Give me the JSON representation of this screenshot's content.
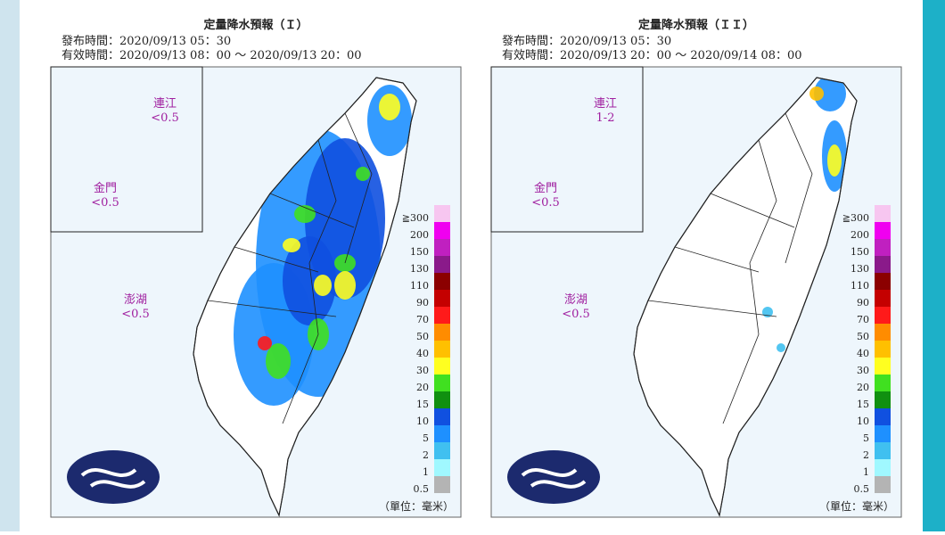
{
  "panels": [
    {
      "title": "定量降水預報（Ｉ）",
      "issued": "發布時間：2020/09/13 05：30",
      "valid": "有效時間：2020/09/13 08：00 ～ 2020/09/13 20：00",
      "islands": [
        {
          "name": "連江",
          "amount": "<0.5"
        },
        {
          "name": "金門",
          "amount": "<0.5"
        },
        {
          "name": "澎湖",
          "amount": "<0.5"
        }
      ],
      "unit": "（單位：毫米）"
    },
    {
      "title": "定量降水預報（ＩＩ）",
      "issued": "發布時間：2020/09/13 05：30",
      "valid": "有效時間：2020/09/13 20：00 ～ 2020/09/14 08：00",
      "islands": [
        {
          "name": "連江",
          "amount": "1-2"
        },
        {
          "name": "金門",
          "amount": "<0.5"
        },
        {
          "name": "澎湖",
          "amount": "<0.5"
        }
      ],
      "unit": "（單位：毫米）"
    }
  ],
  "legend": [
    {
      "label": "≧300",
      "color": "#f7c6f0"
    },
    {
      "label": "200",
      "color": "#f000f0"
    },
    {
      "label": "150",
      "color": "#c020c0"
    },
    {
      "label": "130",
      "color": "#8a1a8a"
    },
    {
      "label": "110",
      "color": "#8b0000"
    },
    {
      "label": "90",
      "color": "#c40000"
    },
    {
      "label": "70",
      "color": "#ff1a1a"
    },
    {
      "label": "50",
      "color": "#ff8c00"
    },
    {
      "label": "40",
      "color": "#ffc000"
    },
    {
      "label": "30",
      "color": "#ffff20"
    },
    {
      "label": "20",
      "color": "#40e020"
    },
    {
      "label": "15",
      "color": "#109010"
    },
    {
      "label": "10",
      "color": "#1050e0"
    },
    {
      "label": "5",
      "color": "#1e90ff"
    },
    {
      "label": "2",
      "color": "#40c0f0"
    },
    {
      "label": "1",
      "color": "#a0f8ff"
    },
    {
      "label": "0.5",
      "color": "#b4b4b4"
    }
  ]
}
